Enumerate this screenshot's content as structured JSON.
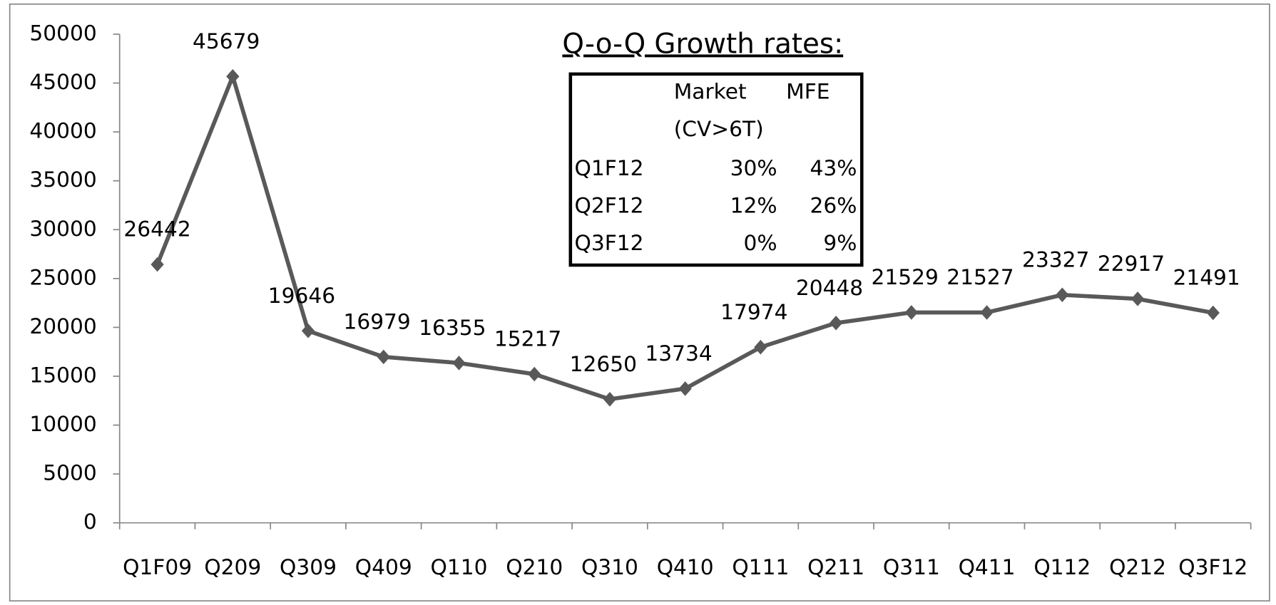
{
  "chart_data": {
    "type": "line",
    "categories": [
      "Q1F09",
      "Q209",
      "Q309",
      "Q409",
      "Q110",
      "Q210",
      "Q310",
      "Q410",
      "Q111",
      "Q211",
      "Q311",
      "Q411",
      "Q112",
      "Q212",
      "Q3F12"
    ],
    "series": [
      {
        "color": "#595959",
        "values": [
          26442,
          45679,
          19646,
          16979,
          16355,
          15217,
          12650,
          13734,
          17974,
          20448,
          21529,
          21527,
          23327,
          22917,
          21491
        ]
      }
    ],
    "ylim": [
      0,
      50000
    ],
    "yticks": [
      0,
      5000,
      10000,
      15000,
      20000,
      25000,
      30000,
      35000,
      40000,
      45000,
      50000
    ],
    "inset_table": {
      "title": "Q-o-Q Growth rates:",
      "columns": [
        {
          "name": "Market",
          "subtitle": "(CV>6T)"
        },
        {
          "name": "MFE"
        }
      ],
      "rows": [
        {
          "label": "Q1F12",
          "values": [
            "30%",
            "43%"
          ]
        },
        {
          "label": "Q2F12",
          "values": [
            "12%",
            "26%"
          ]
        },
        {
          "label": "Q3F12",
          "values": [
            "0%",
            "9%"
          ]
        }
      ]
    }
  }
}
